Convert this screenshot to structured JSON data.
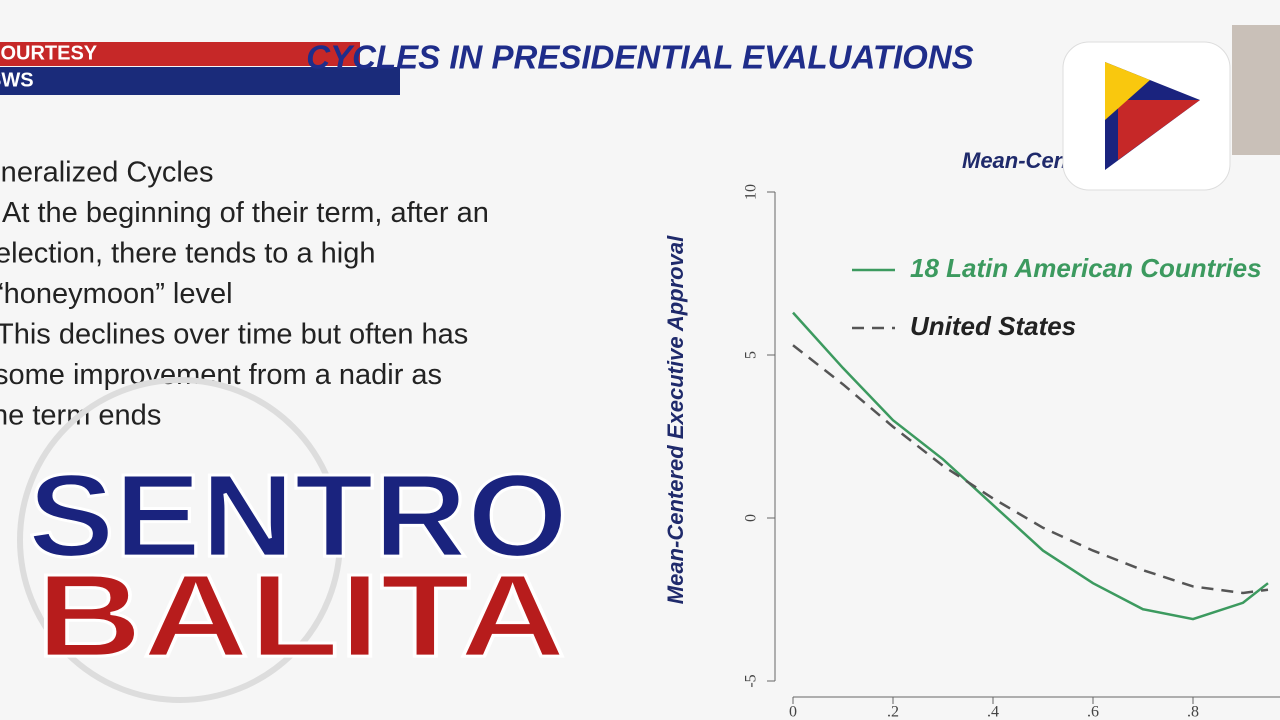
{
  "overlay": {
    "courtesy": [
      "COURTESY",
      "SWS"
    ],
    "show_title": [
      "SENTRO",
      "BALITA"
    ]
  },
  "slide": {
    "title": "CYCLES IN PRESIDENTIAL EVALUATIONS",
    "bullets": [
      [
        "Generalized Cycles"
      ],
      [
        "At the beginning of their term, after an",
        "election, there tends to a high",
        "“honeymoon” level"
      ],
      [
        "This declines over time but often has",
        "some improvement from a nadir as",
        "the term ends"
      ]
    ]
  },
  "chart_data": {
    "type": "line",
    "title": "Mean-Centered",
    "ylabel": "Mean-Centered Executive Approval",
    "x": [
      0,
      0.1,
      0.2,
      0.3,
      0.4,
      0.5,
      0.6,
      0.7,
      0.8,
      0.9,
      0.95
    ],
    "series": [
      {
        "name": "18 Latin American Countries",
        "color": "#3c9a5f",
        "dash": false,
        "values": [
          6.3,
          4.6,
          3.0,
          1.8,
          0.4,
          -1.0,
          -2.0,
          -2.8,
          -3.1,
          -2.6,
          -2.0
        ]
      },
      {
        "name": "United States",
        "color": "#555555",
        "dash": true,
        "values": [
          5.3,
          4.1,
          2.8,
          1.6,
          0.6,
          -0.3,
          -1.0,
          -1.6,
          -2.1,
          -2.3,
          -2.2
        ]
      }
    ],
    "xlim": [
      0,
      1
    ],
    "ylim": [
      -5,
      10
    ],
    "xticks": [
      0,
      {
        "value": 0.2,
        "label": ".2"
      },
      {
        "value": 0.4,
        "label": ".4"
      },
      {
        "value": 0.6,
        "label": ".6"
      },
      {
        "value": 0.8,
        "label": ".8"
      }
    ],
    "yticks": [
      -5,
      0,
      5,
      10
    ]
  }
}
